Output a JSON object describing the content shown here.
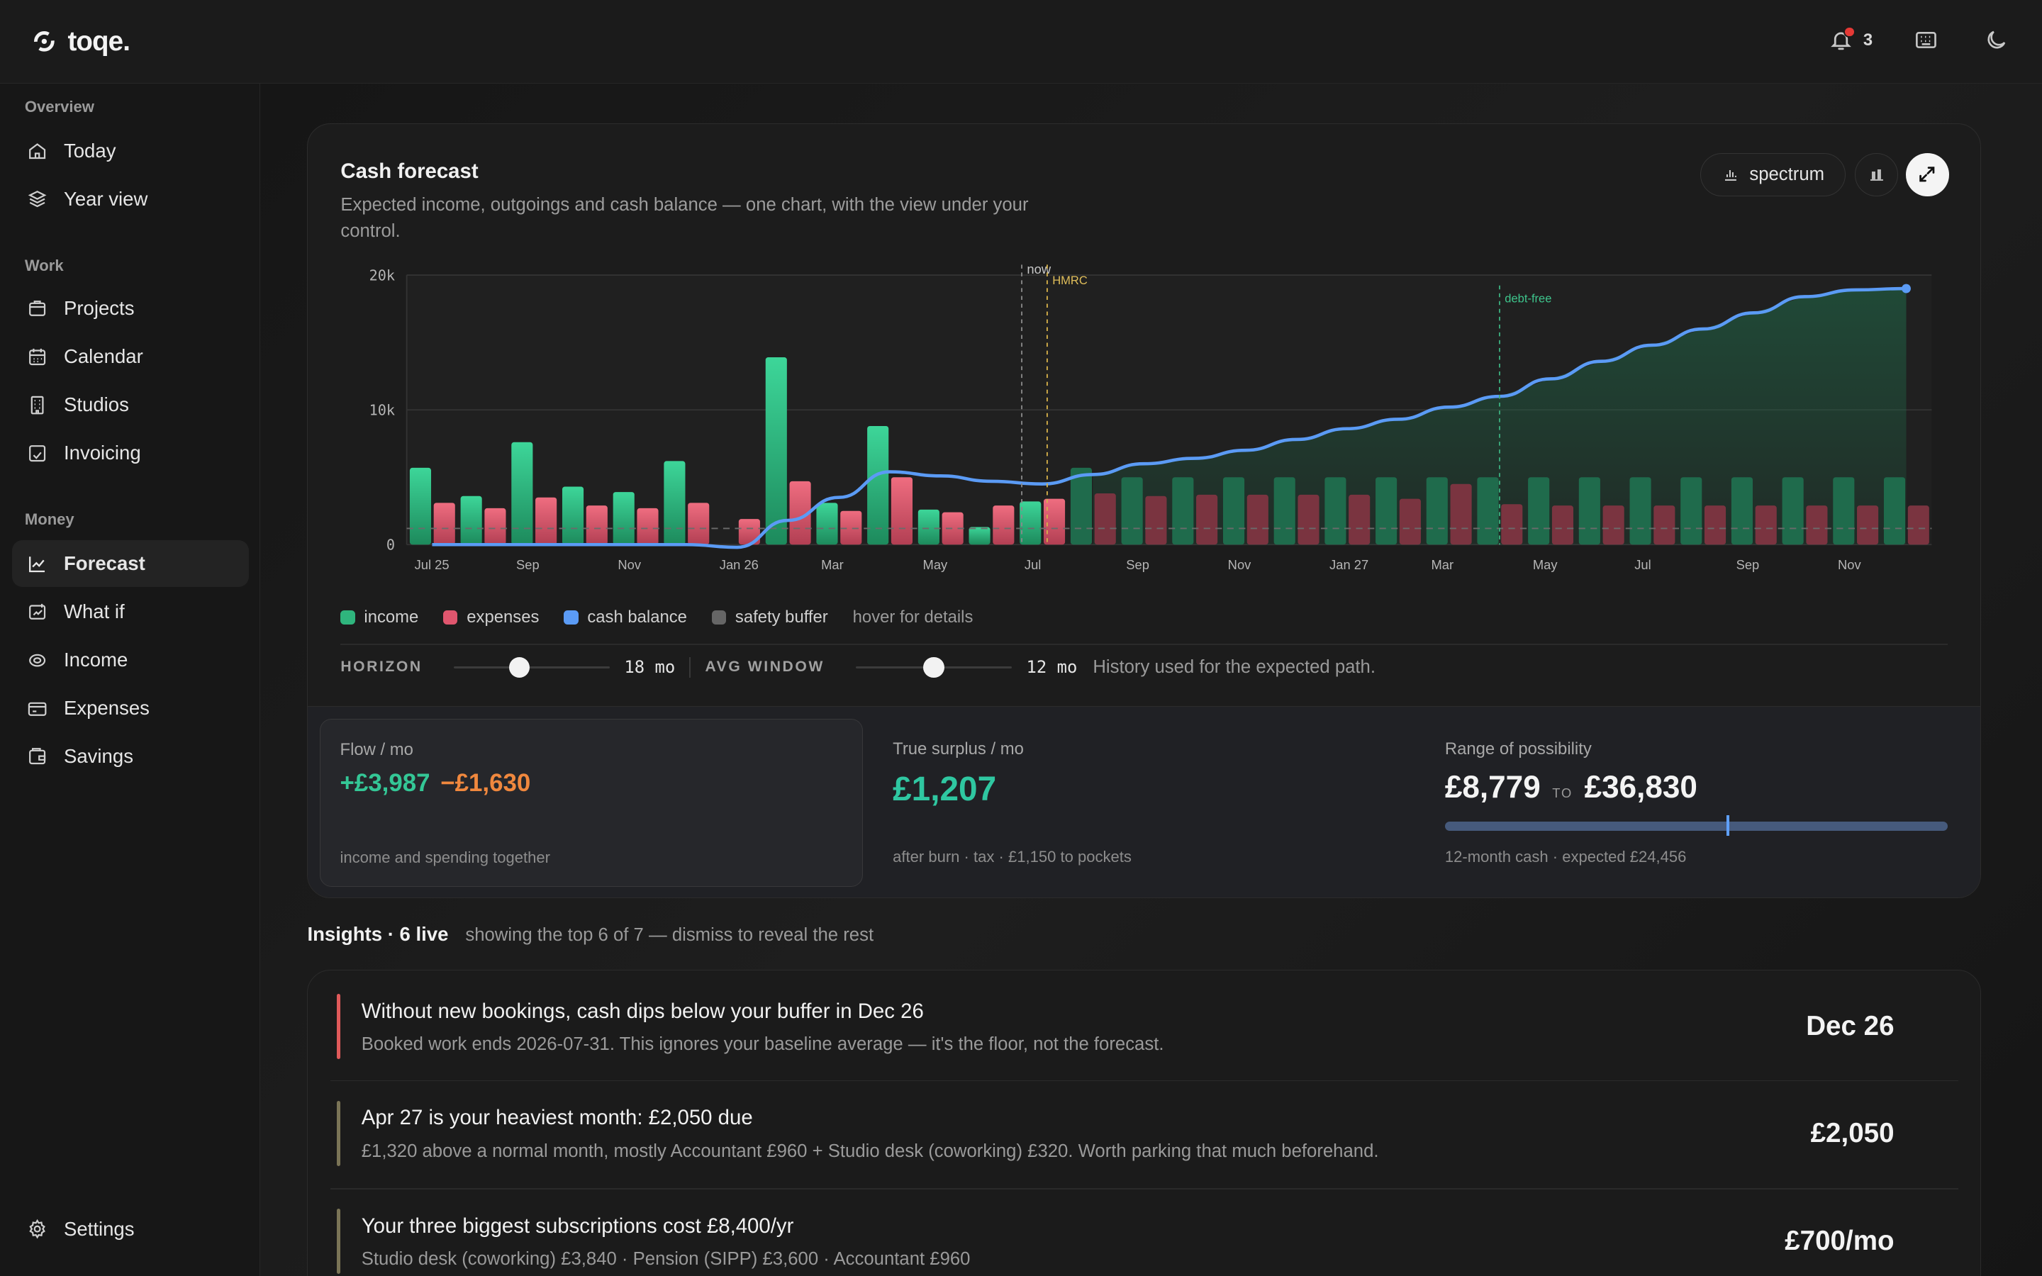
{
  "app": {
    "name": "toqe.",
    "notification_count": "3"
  },
  "sidebar": {
    "sections": [
      {
        "label": "Overview",
        "items": [
          {
            "label": "Today",
            "icon": "home-icon"
          },
          {
            "label": "Year view",
            "icon": "layers-icon"
          }
        ]
      },
      {
        "label": "Work",
        "items": [
          {
            "label": "Projects",
            "icon": "folder-icon"
          },
          {
            "label": "Calendar",
            "icon": "calendar-icon"
          },
          {
            "label": "Studios",
            "icon": "building-icon"
          },
          {
            "label": "Invoicing",
            "icon": "invoice-icon"
          }
        ]
      },
      {
        "label": "Money",
        "items": [
          {
            "label": "Forecast",
            "icon": "trend-icon",
            "active": true
          },
          {
            "label": "What if",
            "icon": "what-if-icon"
          },
          {
            "label": "Income",
            "icon": "coins-icon"
          },
          {
            "label": "Expenses",
            "icon": "card-icon"
          },
          {
            "label": "Savings",
            "icon": "wallet-icon"
          }
        ]
      }
    ],
    "settings_label": "Settings"
  },
  "forecast": {
    "title": "Cash forecast",
    "subtitle": "Expected income, outgoings and cash balance — one chart, with the view under your control.",
    "spectrum_label": "spectrum",
    "legend": {
      "income": "income",
      "expenses": "expenses",
      "cash_balance": "cash balance",
      "safety_buffer": "safety buffer",
      "hint": "hover for details"
    },
    "controls": {
      "horizon_label": "HORIZON",
      "horizon_value": "18 mo",
      "horizon_fraction": 0.42,
      "avg_label": "AVG WINDOW",
      "avg_value": "12 mo",
      "avg_fraction": 0.5,
      "note": "History used for the expected path."
    }
  },
  "chart_data": {
    "type": "bar",
    "x_tick_labels": [
      "Jul 25",
      "Sep",
      "Nov",
      "Jan 26",
      "Mar",
      "May",
      "Jul",
      "Sep",
      "Nov",
      "Jan 27",
      "Mar",
      "May",
      "Jul",
      "Sep",
      "Nov"
    ],
    "y_tick_labels": [
      "20k",
      "10k",
      "0"
    ],
    "ylim": [
      0,
      20000
    ],
    "months": 30,
    "series": [
      {
        "name": "income",
        "color": "#2fb57d",
        "values": [
          5700,
          3600,
          7600,
          4300,
          3900,
          6200,
          0,
          13900,
          3100,
          8800,
          2600,
          1300,
          3200,
          5700,
          5000,
          5000,
          5000,
          5000,
          5000,
          5000,
          5000,
          5000,
          5000,
          5000,
          5000,
          5000,
          5000,
          5000,
          5000,
          5000
        ]
      },
      {
        "name": "expenses",
        "color": "#e0566e",
        "values": [
          3100,
          2700,
          3500,
          2900,
          2700,
          3100,
          1900,
          4700,
          2500,
          5000,
          2400,
          2900,
          3400,
          3800,
          3600,
          3700,
          3700,
          3700,
          3700,
          3400,
          4500,
          3000,
          2900,
          2900,
          2900,
          2900,
          2900,
          2900,
          2900,
          2900
        ]
      },
      {
        "name": "cash balance",
        "color": "#5b9bf5",
        "values": [
          0,
          0,
          0,
          0,
          0,
          0,
          -200,
          1800,
          3500,
          5400,
          5100,
          4700,
          4500,
          5200,
          6000,
          6400,
          7000,
          7800,
          8600,
          9300,
          10200,
          11000,
          12300,
          13600,
          14800,
          16000,
          17200,
          18400,
          18900,
          19000
        ]
      },
      {
        "name": "safety buffer",
        "color": "#6b6b6b",
        "values": [
          1200
        ]
      }
    ],
    "markers": [
      {
        "label": "now",
        "month": 12.1
      },
      {
        "label": "HMRC",
        "month": 12.6
      },
      {
        "label": "debt-free",
        "month": 21.5
      }
    ],
    "grid": true
  },
  "stats": {
    "flow": {
      "label": "Flow / mo",
      "income": "+£3,987",
      "spending": "−£1,630",
      "footer": "income and spending together"
    },
    "surplus": {
      "label": "True surplus / mo",
      "value": "£1,207",
      "footer": "after burn · tax · £1,150 to pockets"
    },
    "range": {
      "label": "Range of possibility",
      "low": "£8,779",
      "to": "TO",
      "high": "£36,830",
      "expected_fraction": 0.56,
      "footer": "12-month cash · expected £24,456"
    }
  },
  "insights": {
    "heading": "Insights · 6 live",
    "subheading": "showing the top 6 of 7 — dismiss to reveal the rest",
    "items": [
      {
        "title": "Without new bookings, cash dips below your buffer in Dec 26",
        "desc": "Booked work ends 2026-07-31. This ignores your baseline average — it's the floor, not the forecast.",
        "value": "Dec 26",
        "color": "#e05a5a"
      },
      {
        "title": "Apr 27 is your heaviest month: £2,050 due",
        "desc": "£1,320 above a normal month, mostly Accountant £960 + Studio desk (coworking) £320. Worth parking that much beforehand.",
        "value": "£2,050",
        "color": "#7a7456"
      },
      {
        "title": "Your three biggest subscriptions cost £8,400/yr",
        "desc": "Studio desk (coworking) £3,840 · Pension (SIPP) £3,600 · Accountant £960",
        "value": "£700/mo",
        "color": "#7a7456"
      }
    ]
  }
}
